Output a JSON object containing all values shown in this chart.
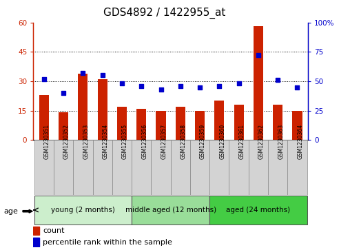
{
  "title": "GDS4892 / 1422955_at",
  "samples": [
    "GSM1230351",
    "GSM1230352",
    "GSM1230353",
    "GSM1230354",
    "GSM1230355",
    "GSM1230356",
    "GSM1230357",
    "GSM1230358",
    "GSM1230359",
    "GSM1230360",
    "GSM1230361",
    "GSM1230362",
    "GSM1230363",
    "GSM1230364"
  ],
  "counts": [
    23,
    14,
    34,
    31,
    17,
    16,
    15,
    17,
    15,
    20,
    18,
    58,
    18,
    15
  ],
  "percentiles": [
    52,
    40,
    57,
    55,
    48,
    46,
    43,
    46,
    45,
    46,
    48,
    72,
    51,
    45
  ],
  "ylim_left": [
    0,
    60
  ],
  "ylim_right": [
    0,
    100
  ],
  "yticks_left": [
    0,
    15,
    30,
    45,
    60
  ],
  "yticks_right": [
    0,
    25,
    50,
    75,
    100
  ],
  "ytick_labels_right": [
    "0",
    "25",
    "50",
    "75",
    "100%"
  ],
  "bar_color": "#cc2200",
  "dot_color": "#0000cc",
  "grid_yticks": [
    15,
    30,
    45
  ],
  "groups": [
    {
      "label": "young (2 months)",
      "start": 0,
      "end": 5,
      "color": "#cceecc"
    },
    {
      "label": "middle aged (12 months)",
      "start": 5,
      "end": 9,
      "color": "#99dd99"
    },
    {
      "label": "aged (24 months)",
      "start": 9,
      "end": 14,
      "color": "#44cc44"
    }
  ],
  "legend_count_label": "count",
  "legend_percentile_label": "percentile rank within the sample",
  "age_label": "age",
  "bar_width": 0.5,
  "title_fontsize": 11,
  "tick_fontsize": 7.5,
  "sample_fontsize": 5.5,
  "group_fontsize": 7.5,
  "legend_fontsize": 8
}
